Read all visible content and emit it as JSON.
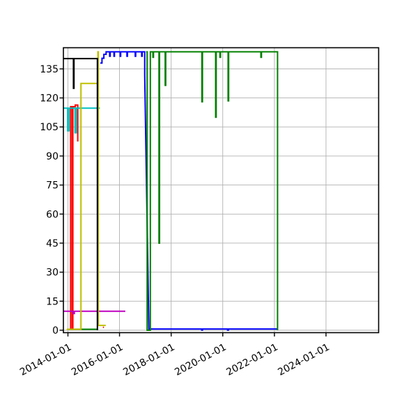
{
  "figure": {
    "background": "#ffffff",
    "frame_color": "#000000",
    "grid_color": "#b0b0b0",
    "plot_background": "#ffffff"
  },
  "chart_data": {
    "type": "line",
    "title": "",
    "xlabel": "",
    "ylabel": "",
    "grid": true,
    "legend": "none",
    "x_axis": {
      "tick_labels": [
        "2014-01-01",
        "2016-01-01",
        "2018-01-01",
        "2020-01-01",
        "2022-01-01",
        "2024-01-01"
      ],
      "range_start": "2013-10-26",
      "range_end": "2026-01-10",
      "tick_rotation_deg": -28
    },
    "y_axis": {
      "tick_values": [
        0,
        15,
        30,
        45,
        60,
        75,
        90,
        105,
        120,
        135
      ],
      "tick_labels": [
        "0",
        "15",
        "30",
        "45",
        "60",
        "75",
        "90",
        "105",
        "120",
        "135"
      ],
      "range": [
        -1.3,
        146
      ]
    },
    "series": [
      {
        "name": "blue",
        "color": "#0000ff",
        "segments": [
          [
            [
              "2015-04-03",
              138
            ],
            [
              "2015-04-28",
              138
            ],
            [
              "2015-04-28",
              140.5
            ],
            [
              "2015-05-25",
              140.5
            ],
            [
              "2015-05-25",
              142.5
            ],
            [
              "2015-06-25",
              142.5
            ],
            [
              "2015-06-25",
              143.8
            ],
            [
              "2015-08-15",
              143.8
            ],
            [
              "2015-08-15",
              141.5
            ],
            [
              "2015-08-22",
              141.5
            ],
            [
              "2015-08-22",
              143.8
            ],
            [
              "2015-10-15",
              143.8
            ],
            [
              "2015-10-15",
              141.5
            ],
            [
              "2015-10-22",
              141.5
            ],
            [
              "2015-10-22",
              143.8
            ],
            [
              "2016-01-10",
              143.8
            ],
            [
              "2016-01-10",
              141.5
            ],
            [
              "2016-01-17",
              141.5
            ],
            [
              "2016-01-17",
              143.8
            ],
            [
              "2016-04-15",
              143.8
            ],
            [
              "2016-04-15",
              141.5
            ],
            [
              "2016-04-22",
              141.5
            ],
            [
              "2016-04-22",
              143.8
            ],
            [
              "2016-08-10",
              143.8
            ],
            [
              "2016-08-10",
              141.5
            ],
            [
              "2016-08-17",
              141.5
            ],
            [
              "2016-08-17",
              143.8
            ],
            [
              "2016-11-10",
              143.8
            ],
            [
              "2016-11-10",
              141.5
            ],
            [
              "2016-11-17",
              141.5
            ],
            [
              "2016-11-17",
              143.8
            ],
            [
              "2016-12-22",
              143.8
            ],
            [
              "2016-12-22",
              132
            ],
            [
              "2017-02-20",
              0.6
            ],
            [
              "2019-03-10",
              0.6
            ],
            [
              "2019-03-10",
              0.05
            ],
            [
              "2019-03-20",
              0.05
            ],
            [
              "2019-03-20",
              0.6
            ],
            [
              "2020-03-10",
              0.6
            ],
            [
              "2020-03-10",
              0.05
            ],
            [
              "2020-03-20",
              0.05
            ],
            [
              "2020-03-20",
              0.6
            ],
            [
              "2022-02-12",
              0.6
            ]
          ]
        ]
      },
      {
        "name": "green",
        "color": "#008000",
        "segments": [
          [
            [
              "2014-01-20",
              0.5
            ],
            [
              "2015-02-22",
              0.5
            ]
          ],
          [
            [
              "2017-01-12",
              143.8
            ],
            [
              "2017-01-26",
              143.8
            ],
            [
              "2017-01-26",
              0
            ],
            [
              "2017-03-12",
              0
            ],
            [
              "2017-03-12",
              143.8
            ],
            [
              "2017-04-18",
              143.8
            ],
            [
              "2017-04-18",
              141
            ],
            [
              "2017-04-26",
              141
            ],
            [
              "2017-04-26",
              143.8
            ],
            [
              "2017-07-12",
              143.8
            ],
            [
              "2017-07-12",
              45
            ],
            [
              "2017-07-20",
              45
            ],
            [
              "2017-07-20",
              143.8
            ],
            [
              "2017-10-08",
              143.8
            ],
            [
              "2017-10-08",
              126.5
            ],
            [
              "2017-10-16",
              126.5
            ],
            [
              "2017-10-16",
              143.8
            ],
            [
              "2019-03-12",
              143.8
            ],
            [
              "2019-03-12",
              118
            ],
            [
              "2019-03-20",
              118
            ],
            [
              "2019-03-20",
              143.8
            ],
            [
              "2019-09-22",
              143.8
            ],
            [
              "2019-09-22",
              110
            ],
            [
              "2019-09-30",
              110
            ],
            [
              "2019-09-30",
              143.8
            ],
            [
              "2019-11-22",
              143.8
            ],
            [
              "2019-11-22",
              141
            ],
            [
              "2019-11-30",
              141
            ],
            [
              "2019-11-30",
              143.8
            ],
            [
              "2020-03-16",
              143.8
            ],
            [
              "2020-03-16",
              118.5
            ],
            [
              "2020-03-24",
              118.5
            ],
            [
              "2020-03-24",
              143.8
            ],
            [
              "2021-06-24",
              143.8
            ],
            [
              "2021-06-24",
              141
            ],
            [
              "2021-07-02",
              141
            ],
            [
              "2021-07-02",
              143.8
            ],
            [
              "2022-02-14",
              143.8
            ],
            [
              "2022-02-14",
              0
            ]
          ]
        ]
      },
      {
        "name": "red",
        "color": "#ff0000",
        "segments": [
          [
            [
              "2014-02-08",
              0.5
            ],
            [
              "2014-02-08",
              115.5
            ],
            [
              "2014-03-02",
              115.5
            ],
            [
              "2014-03-02",
              0.5
            ],
            [
              "2014-03-12",
              0.5
            ],
            [
              "2014-03-12",
              115.5
            ],
            [
              "2014-04-15",
              115.5
            ],
            [
              "2014-04-15",
              116.3
            ],
            [
              "2014-05-20",
              116.3
            ],
            [
              "2014-05-20",
              97.5
            ]
          ],
          [
            [
              "2015-05-12",
              1.5
            ],
            [
              "2015-05-26",
              1.5
            ]
          ]
        ]
      },
      {
        "name": "cyan",
        "color": "#00bfbf",
        "segments": [
          [
            [
              "2013-10-01",
              114.7
            ],
            [
              "2013-12-28",
              114.7
            ],
            [
              "2013-12-28",
              103
            ],
            [
              "2014-01-18",
              103
            ],
            [
              "2014-01-18",
              114.7
            ],
            [
              "2014-04-12",
              114.7
            ],
            [
              "2014-04-12",
              102
            ],
            [
              "2014-04-30",
              102
            ],
            [
              "2014-04-30",
              114.7
            ],
            [
              "2015-03-29",
              114.7
            ]
          ]
        ]
      },
      {
        "name": "magenta",
        "color": "#bf00bf",
        "segments": [
          [
            [
              "2013-10-01",
              9.8
            ],
            [
              "2014-03-16",
              9.8
            ],
            [
              "2014-03-16",
              8.6
            ],
            [
              "2014-04-02",
              8.6
            ],
            [
              "2014-04-02",
              9.8
            ],
            [
              "2016-03-23",
              9.8
            ]
          ]
        ]
      },
      {
        "name": "yellow",
        "color": "#bfbf00",
        "segments": [
          [
            [
              "2013-12-15",
              0.5
            ],
            [
              "2014-07-04",
              0.5
            ],
            [
              "2014-07-04",
              127.5
            ],
            [
              "2015-03-01",
              127.5
            ],
            [
              "2015-03-01",
              143.8
            ],
            [
              "2015-03-08",
              143.8
            ],
            [
              "2015-03-08",
              2.5
            ],
            [
              "2015-06-20",
              2.5
            ]
          ]
        ]
      },
      {
        "name": "black",
        "color": "#000000",
        "segments": [
          [
            [
              "2013-10-01",
              140.3
            ],
            [
              "2014-03-20",
              140.3
            ],
            [
              "2014-03-20",
              125
            ],
            [
              "2014-03-28",
              125
            ],
            [
              "2014-03-28",
              140.3
            ],
            [
              "2015-02-22",
              140.3
            ],
            [
              "2015-02-22",
              0
            ]
          ]
        ]
      }
    ]
  }
}
